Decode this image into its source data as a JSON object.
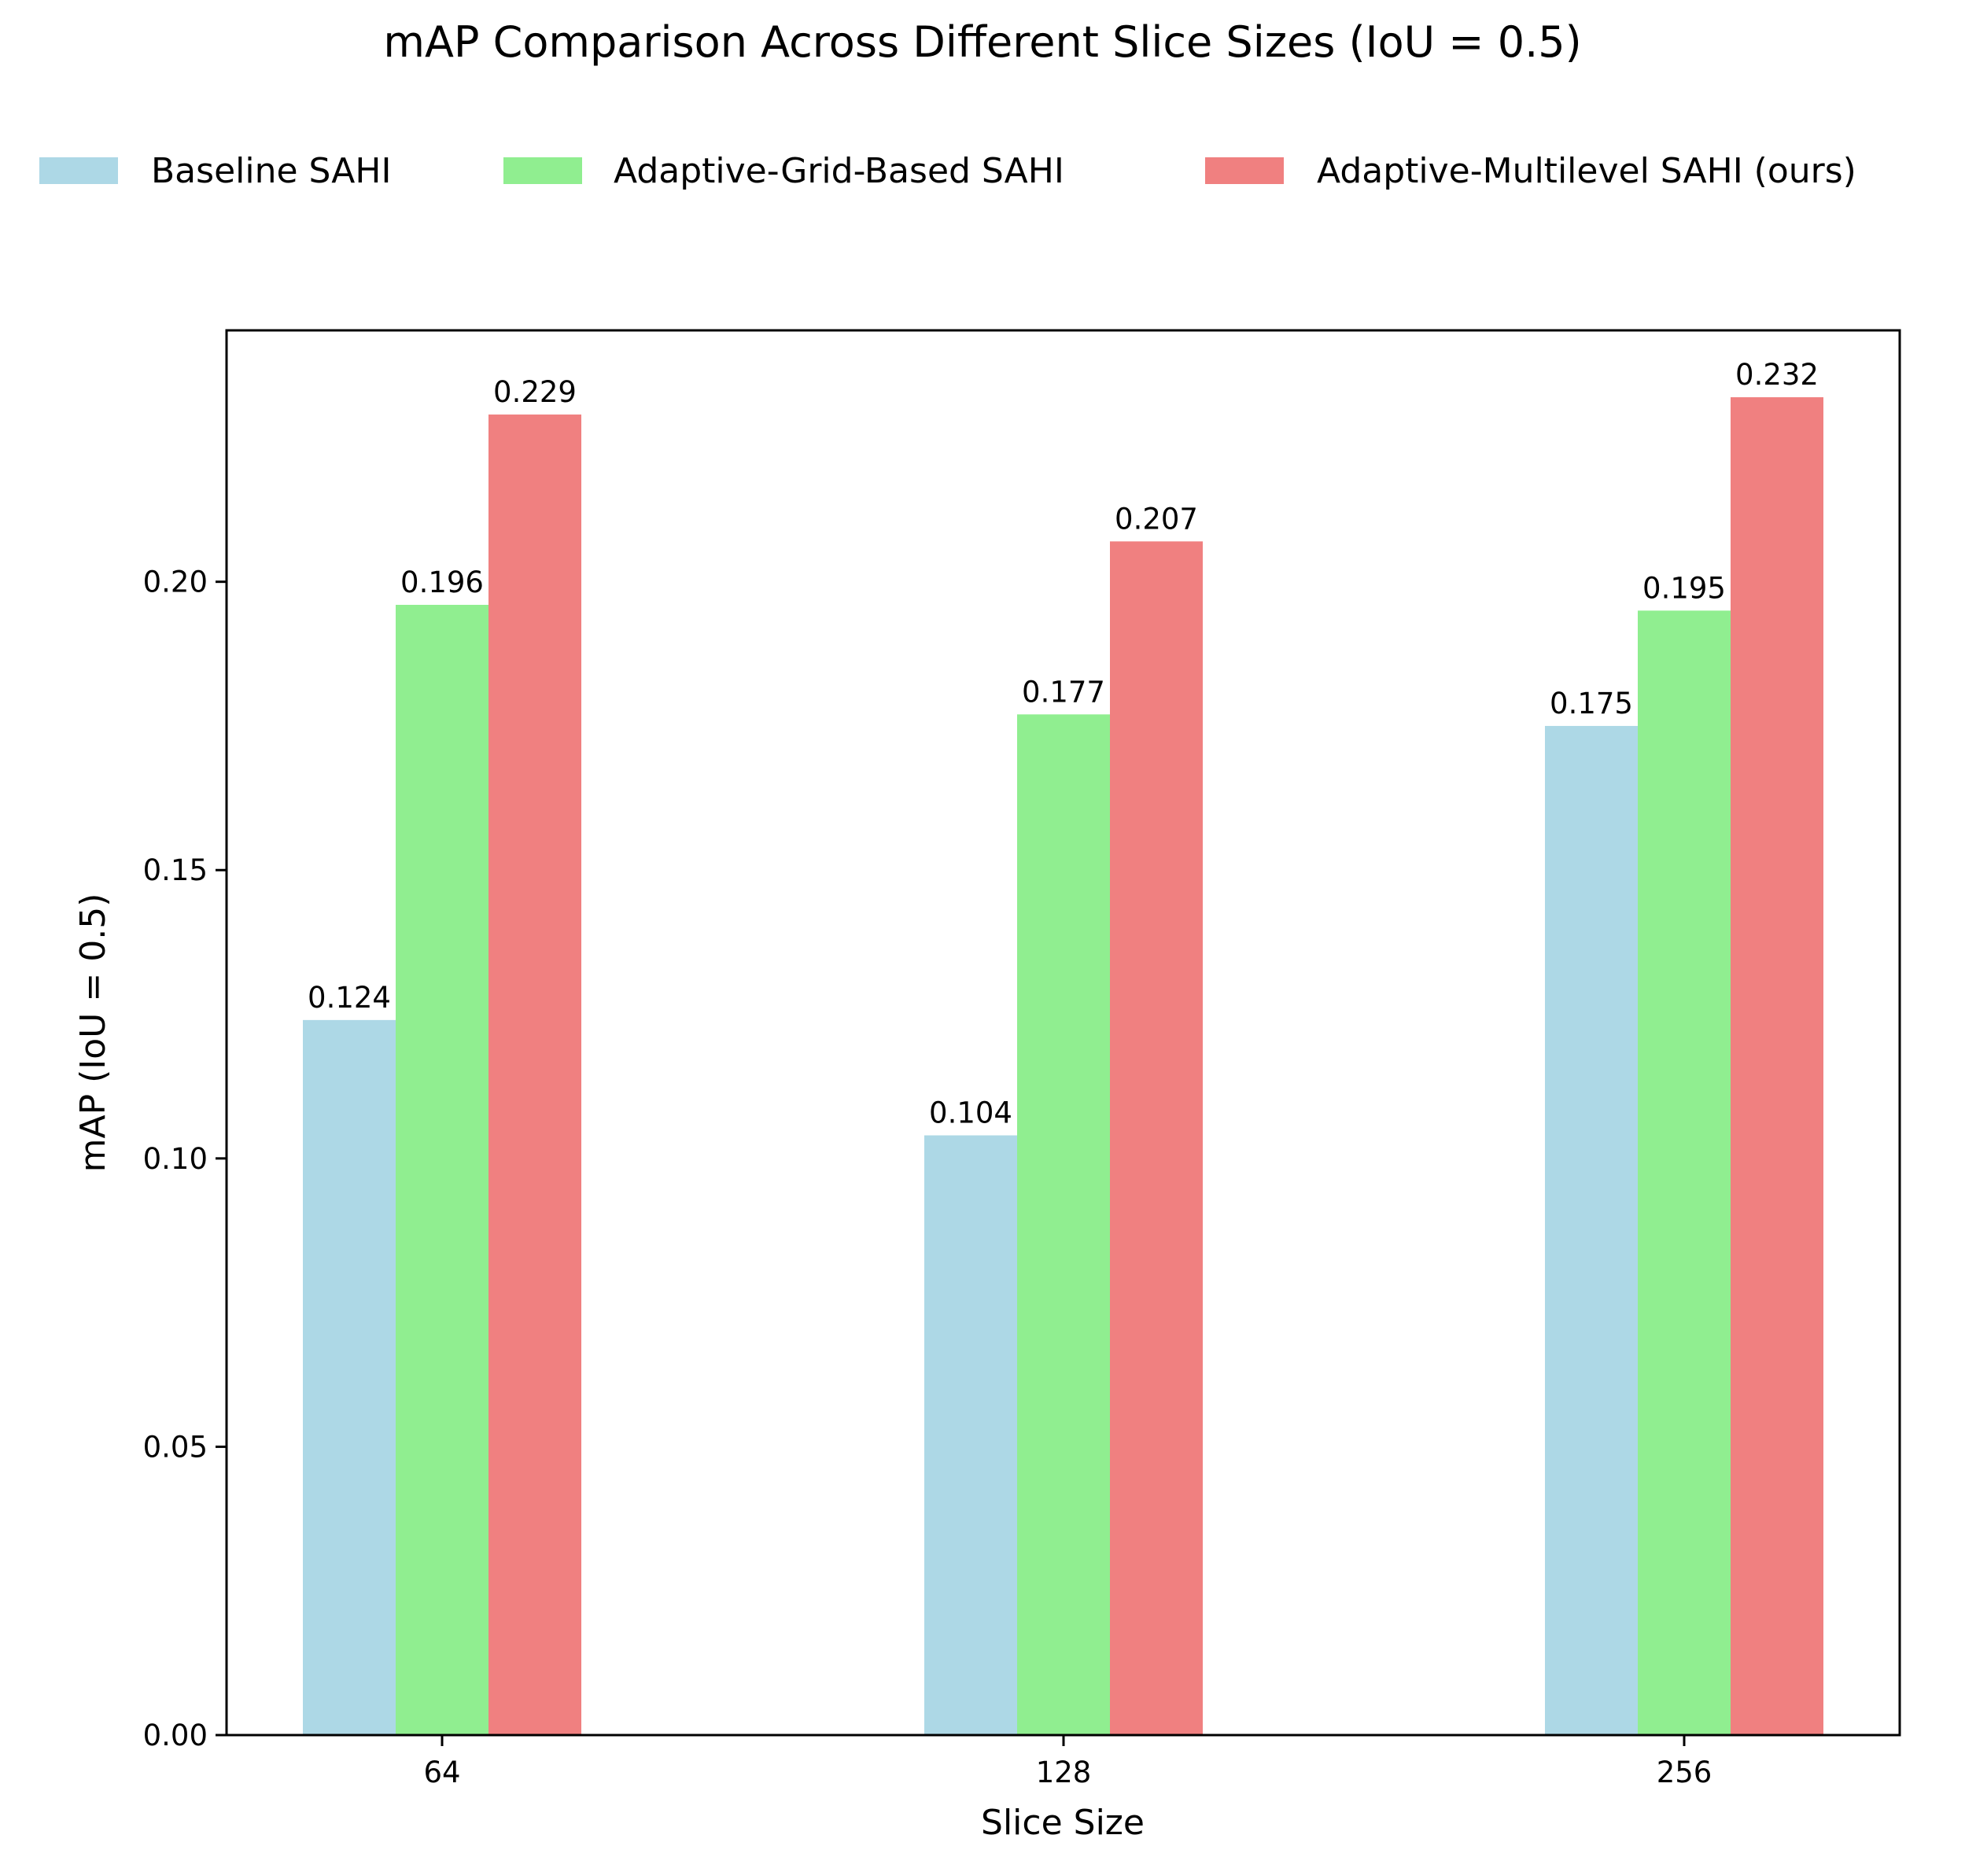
{
  "chart_data": {
    "type": "bar",
    "title": "mAP Comparison Across Different Slice Sizes (IoU = 0.5)",
    "xlabel": "Slice Size",
    "ylabel": "mAP (IoU = 0.5)",
    "categories": [
      "64",
      "128",
      "256"
    ],
    "series": [
      {
        "name": "Baseline SAHI",
        "color": "#add8e6",
        "values": [
          0.124,
          0.104,
          0.175
        ],
        "labels": [
          "0.124",
          "0.104",
          "0.175"
        ]
      },
      {
        "name": "Adaptive-Grid-Based SAHI",
        "color": "#90ee90",
        "values": [
          0.196,
          0.177,
          0.195
        ],
        "labels": [
          "0.196",
          "0.177",
          "0.195"
        ]
      },
      {
        "name": "Adaptive-Multilevel SAHI (ours)",
        "color": "#f08080",
        "values": [
          0.229,
          0.207,
          0.232
        ],
        "labels": [
          "0.229",
          "0.207",
          "0.232"
        ]
      }
    ],
    "ylim": [
      0,
      0.2436
    ],
    "yticks": [
      0.0,
      0.05,
      0.1,
      0.15,
      0.2
    ],
    "ytick_labels": [
      "0.00",
      "0.05",
      "0.10",
      "0.15",
      "0.20"
    ],
    "grid": false,
    "legend_position": "top"
  }
}
